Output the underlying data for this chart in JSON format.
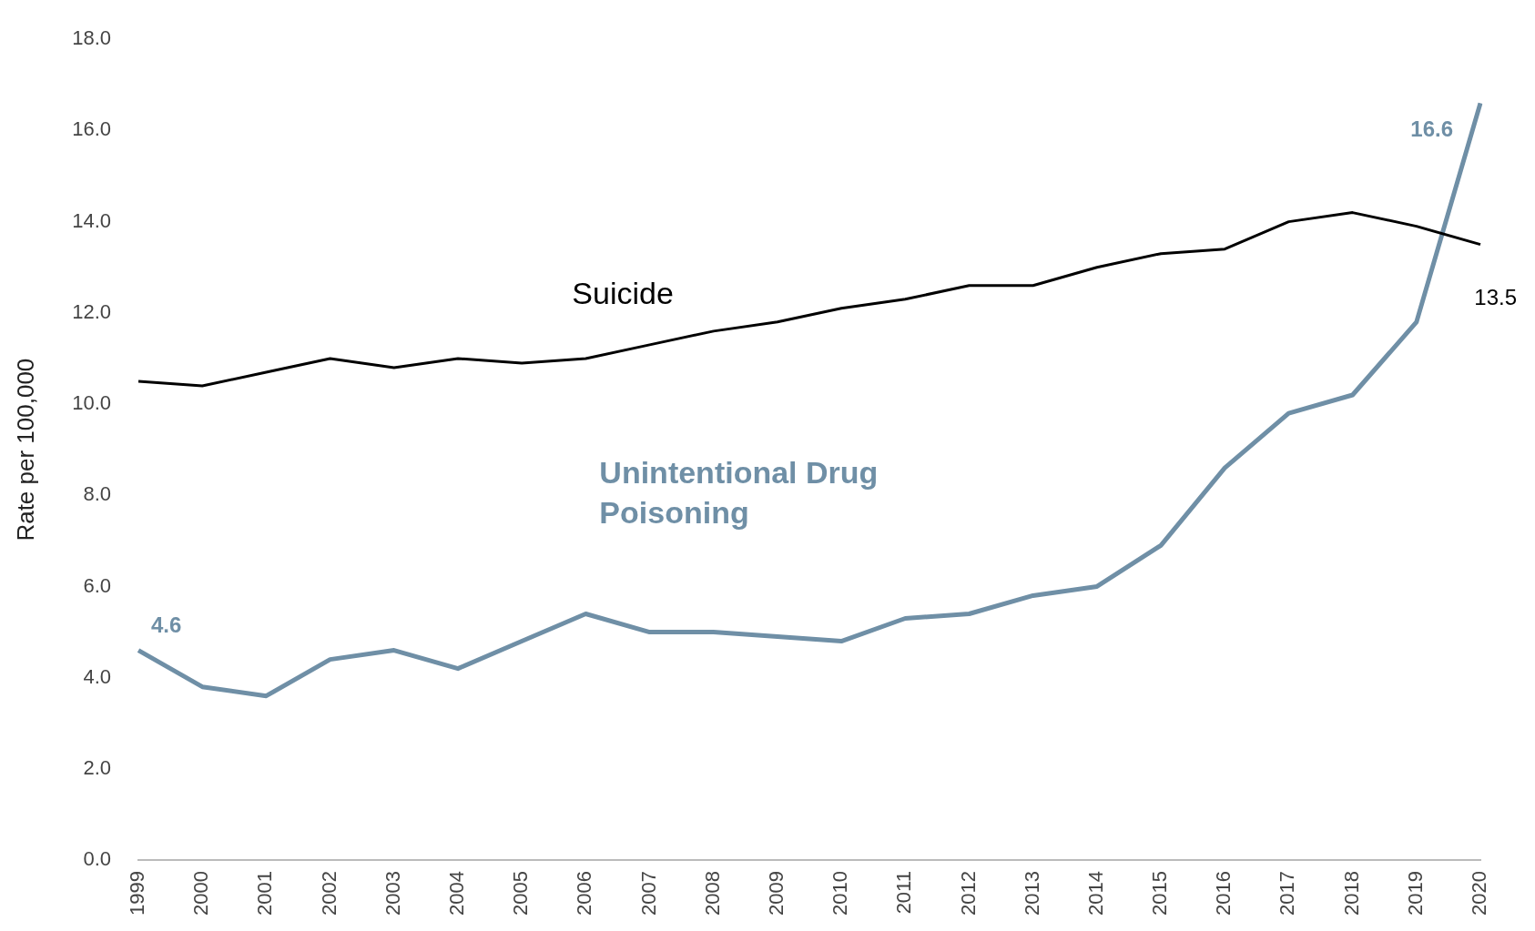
{
  "chart_data": {
    "type": "line",
    "ylabel": "Rate per 100,000",
    "categories": [
      "1999",
      "2000",
      "2001",
      "2002",
      "2003",
      "2004",
      "2005",
      "2006",
      "2007",
      "2008",
      "2009",
      "2010",
      "2011",
      "2012",
      "2013",
      "2014",
      "2015",
      "2016",
      "2017",
      "2018",
      "2019",
      "2020"
    ],
    "series": [
      {
        "name": "Suicide",
        "color": "#000000",
        "values": [
          10.5,
          10.4,
          10.7,
          11.0,
          10.8,
          11.0,
          10.9,
          11.0,
          11.3,
          11.6,
          11.8,
          12.1,
          12.3,
          12.6,
          12.6,
          13.0,
          13.3,
          13.4,
          14.0,
          14.2,
          13.9,
          13.5
        ],
        "value_labels": [
          null,
          null,
          null,
          null,
          null,
          null,
          null,
          null,
          null,
          null,
          null,
          null,
          null,
          null,
          null,
          null,
          null,
          null,
          null,
          null,
          null,
          "13.5"
        ]
      },
      {
        "name": "Unintentional Drug Poisoning",
        "color": "#6f8fa6",
        "values": [
          4.6,
          3.8,
          3.6,
          4.4,
          4.6,
          4.2,
          4.8,
          5.4,
          5.0,
          5.0,
          4.9,
          4.8,
          5.3,
          5.4,
          5.8,
          6.0,
          6.9,
          8.6,
          9.8,
          10.2,
          11.8,
          16.6
        ],
        "value_labels": [
          "4.6",
          null,
          null,
          null,
          null,
          null,
          null,
          null,
          null,
          null,
          null,
          null,
          null,
          null,
          null,
          null,
          null,
          null,
          null,
          null,
          null,
          "16.6"
        ]
      }
    ],
    "ylim": [
      0,
      18
    ],
    "yticks": [
      {
        "value": 0,
        "label": "0.0"
      },
      {
        "value": 2,
        "label": "2.0"
      },
      {
        "value": 4,
        "label": "4.0"
      },
      {
        "value": 6,
        "label": "6.0"
      },
      {
        "value": 8,
        "label": "8.0"
      },
      {
        "value": 10,
        "label": "10.0"
      },
      {
        "value": 12,
        "label": "12.0"
      },
      {
        "value": 14,
        "label": "14.0"
      },
      {
        "value": 16,
        "label": "16.0"
      },
      {
        "value": 18,
        "label": "18.0"
      }
    ],
    "grid": false,
    "legend": false,
    "marker": "none"
  }
}
